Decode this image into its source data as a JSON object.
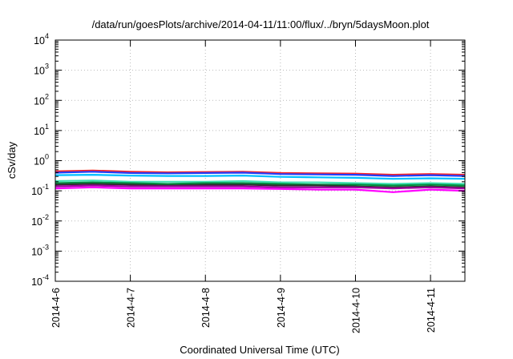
{
  "chart_data": {
    "type": "line",
    "title": "/data/run/goesPlots/archive/2014-04-11/11:00/flux/../bryn/5daysMoon.plot",
    "xlabel": "Coordinated Universal Time (UTC)",
    "ylabel": "cSv/day",
    "y_scale": "log",
    "ylim": [
      0.0001,
      10000
    ],
    "y_ticks": [
      {
        "value": 10000,
        "base": "10",
        "exp": "4"
      },
      {
        "value": 1000,
        "base": "10",
        "exp": "3"
      },
      {
        "value": 100,
        "base": "10",
        "exp": "2"
      },
      {
        "value": 10,
        "base": "10",
        "exp": "1"
      },
      {
        "value": 1,
        "base": "10",
        "exp": "0"
      },
      {
        "value": 0.1,
        "base": "10",
        "exp": "-1"
      },
      {
        "value": 0.01,
        "base": "10",
        "exp": "-2"
      },
      {
        "value": 0.001,
        "base": "10",
        "exp": "-3"
      },
      {
        "value": 0.0001,
        "base": "10",
        "exp": "-4"
      }
    ],
    "x_ticks": [
      "2014-4-6",
      "2014-4-7",
      "2014-4-8",
      "2014-4-9",
      "2014-4-10",
      "2014-4-11"
    ],
    "xlim": [
      "2014-04-06T00:00",
      "2014-04-11T11:00"
    ],
    "grid": true,
    "legend": "none",
    "series": [
      {
        "color": "#ff2020",
        "x": [
          "2014-04-06T00:00",
          "2014-04-06T12:00",
          "2014-04-07T00:00",
          "2014-04-07T12:00",
          "2014-04-08T00:00",
          "2014-04-08T12:00",
          "2014-04-09T00:00",
          "2014-04-09T12:00",
          "2014-04-10T00:00",
          "2014-04-10T12:00",
          "2014-04-11T00:00",
          "2014-04-11T11:00"
        ],
        "y": [
          0.44,
          0.47,
          0.43,
          0.41,
          0.42,
          0.43,
          0.39,
          0.38,
          0.37,
          0.34,
          0.36,
          0.34
        ]
      },
      {
        "color": "#2040ff",
        "x": [
          "2014-04-06T00:00",
          "2014-04-06T12:00",
          "2014-04-07T00:00",
          "2014-04-07T12:00",
          "2014-04-08T00:00",
          "2014-04-08T12:00",
          "2014-04-09T00:00",
          "2014-04-09T12:00",
          "2014-04-10T00:00",
          "2014-04-10T12:00",
          "2014-04-11T00:00",
          "2014-04-11T11:00"
        ],
        "y": [
          0.4,
          0.43,
          0.39,
          0.38,
          0.39,
          0.4,
          0.36,
          0.35,
          0.34,
          0.31,
          0.33,
          0.31
        ]
      },
      {
        "color": "#00bfff",
        "x": [
          "2014-04-06T00:00",
          "2014-04-06T12:00",
          "2014-04-07T00:00",
          "2014-04-07T12:00",
          "2014-04-08T00:00",
          "2014-04-08T12:00",
          "2014-04-09T00:00",
          "2014-04-09T12:00",
          "2014-04-10T00:00",
          "2014-04-10T12:00",
          "2014-04-11T00:00",
          "2014-04-11T11:00"
        ],
        "y": [
          0.33,
          0.34,
          0.32,
          0.31,
          0.31,
          0.32,
          0.29,
          0.28,
          0.27,
          0.25,
          0.26,
          0.25
        ]
      },
      {
        "color": "#40e0b0",
        "x": [
          "2014-04-06T00:00",
          "2014-04-06T12:00",
          "2014-04-07T00:00",
          "2014-04-07T12:00",
          "2014-04-08T00:00",
          "2014-04-08T12:00",
          "2014-04-09T00:00",
          "2014-04-09T12:00",
          "2014-04-10T00:00",
          "2014-04-10T12:00",
          "2014-04-11T00:00",
          "2014-04-11T11:00"
        ],
        "y": [
          0.21,
          0.22,
          0.2,
          0.2,
          0.2,
          0.21,
          0.19,
          0.19,
          0.18,
          0.17,
          0.18,
          0.17
        ]
      },
      {
        "color": "#009040",
        "x": [
          "2014-04-06T00:00",
          "2014-04-06T12:00",
          "2014-04-07T00:00",
          "2014-04-07T12:00",
          "2014-04-08T00:00",
          "2014-04-08T12:00",
          "2014-04-09T00:00",
          "2014-04-09T12:00",
          "2014-04-10T00:00",
          "2014-04-10T12:00",
          "2014-04-11T00:00",
          "2014-04-11T11:00"
        ],
        "y": [
          0.18,
          0.19,
          0.18,
          0.17,
          0.18,
          0.18,
          0.17,
          0.16,
          0.16,
          0.15,
          0.16,
          0.15
        ]
      },
      {
        "color": "#303030",
        "x": [
          "2014-04-06T00:00",
          "2014-04-06T12:00",
          "2014-04-07T00:00",
          "2014-04-07T12:00",
          "2014-04-08T00:00",
          "2014-04-08T12:00",
          "2014-04-09T00:00",
          "2014-04-09T12:00",
          "2014-04-10T00:00",
          "2014-04-10T12:00",
          "2014-04-11T00:00",
          "2014-04-11T11:00"
        ],
        "y": [
          0.16,
          0.17,
          0.16,
          0.15,
          0.16,
          0.16,
          0.15,
          0.15,
          0.14,
          0.13,
          0.14,
          0.13
        ]
      },
      {
        "color": "#a000a0",
        "x": [
          "2014-04-06T00:00",
          "2014-04-06T12:00",
          "2014-04-07T00:00",
          "2014-04-07T12:00",
          "2014-04-08T00:00",
          "2014-04-08T12:00",
          "2014-04-09T00:00",
          "2014-04-09T12:00",
          "2014-04-10T00:00",
          "2014-04-10T12:00",
          "2014-04-11T00:00",
          "2014-04-11T11:00"
        ],
        "y": [
          0.14,
          0.15,
          0.14,
          0.14,
          0.14,
          0.14,
          0.13,
          0.13,
          0.13,
          0.12,
          0.13,
          0.12
        ]
      },
      {
        "color": "#ff00ff",
        "x": [
          "2014-04-06T00:00",
          "2014-04-06T12:00",
          "2014-04-07T00:00",
          "2014-04-07T12:00",
          "2014-04-08T00:00",
          "2014-04-08T12:00",
          "2014-04-09T00:00",
          "2014-04-09T12:00",
          "2014-04-10T00:00",
          "2014-04-10T12:00",
          "2014-04-11T00:00",
          "2014-04-11T11:00"
        ],
        "y": [
          0.12,
          0.13,
          0.12,
          0.12,
          0.12,
          0.12,
          0.115,
          0.11,
          0.11,
          0.09,
          0.11,
          0.1
        ]
      }
    ]
  }
}
